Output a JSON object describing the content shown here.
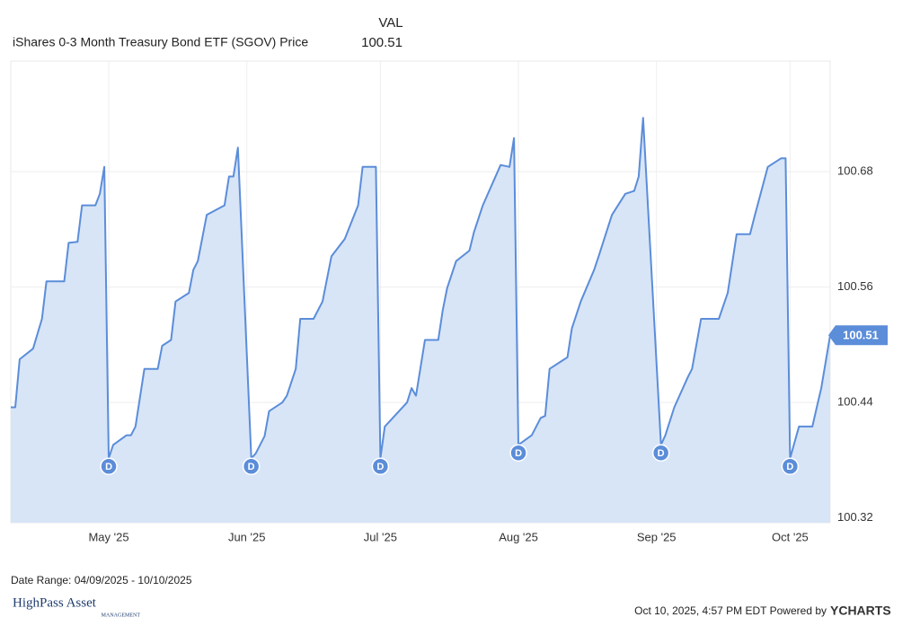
{
  "chart_data": {
    "type": "line",
    "legend_header": "VAL",
    "series": [
      {
        "name": "iShares 0-3 Month Treasury Bond ETF (SGOV) Price",
        "color": "#5b8dd9",
        "x": [
          "2025-04-09",
          "2025-04-10",
          "2025-04-11",
          "2025-04-14",
          "2025-04-16",
          "2025-04-17",
          "2025-04-21",
          "2025-04-22",
          "2025-04-24",
          "2025-04-25",
          "2025-04-28",
          "2025-04-29",
          "2025-04-30",
          "2025-05-01",
          "2025-05-02",
          "2025-05-05",
          "2025-05-06",
          "2025-05-07",
          "2025-05-09",
          "2025-05-12",
          "2025-05-13",
          "2025-05-15",
          "2025-05-16",
          "2025-05-19",
          "2025-05-20",
          "2025-05-21",
          "2025-05-23",
          "2025-05-27",
          "2025-05-28",
          "2025-05-29",
          "2025-05-30",
          "2025-06-02",
          "2025-06-03",
          "2025-06-05",
          "2025-06-06",
          "2025-06-09",
          "2025-06-10",
          "2025-06-12",
          "2025-06-13",
          "2025-06-16",
          "2025-06-18",
          "2025-06-20",
          "2025-06-23",
          "2025-06-26",
          "2025-06-27",
          "2025-06-30",
          "2025-07-01",
          "2025-07-02",
          "2025-07-07",
          "2025-07-08",
          "2025-07-09",
          "2025-07-11",
          "2025-07-14",
          "2025-07-15",
          "2025-07-16",
          "2025-07-18",
          "2025-07-21",
          "2025-07-22",
          "2025-07-24",
          "2025-07-28",
          "2025-07-30",
          "2025-07-31",
          "2025-08-01",
          "2025-08-04",
          "2025-08-06",
          "2025-08-07",
          "2025-08-08",
          "2025-08-11",
          "2025-08-12",
          "2025-08-13",
          "2025-08-15",
          "2025-08-18",
          "2025-08-19",
          "2025-08-22",
          "2025-08-25",
          "2025-08-27",
          "2025-08-28",
          "2025-08-29",
          "2025-09-02",
          "2025-09-03",
          "2025-09-05",
          "2025-09-08",
          "2025-09-09",
          "2025-09-11",
          "2025-09-15",
          "2025-09-17",
          "2025-09-19",
          "2025-09-22",
          "2025-09-23",
          "2025-09-26",
          "2025-09-29",
          "2025-09-30",
          "2025-10-01",
          "2025-10-03",
          "2025-10-06",
          "2025-10-07",
          "2025-10-08",
          "2025-10-10"
        ],
        "values": [
          100.435,
          100.435,
          100.485,
          100.496,
          100.527,
          100.566,
          100.566,
          100.606,
          100.607,
          100.645,
          100.645,
          100.657,
          100.685,
          100.382,
          100.396,
          100.406,
          100.406,
          100.415,
          100.475,
          100.475,
          100.499,
          100.505,
          100.545,
          100.554,
          100.578,
          100.587,
          100.635,
          100.645,
          100.675,
          100.675,
          100.705,
          100.382,
          100.387,
          100.405,
          100.431,
          100.44,
          100.447,
          100.475,
          100.527,
          100.527,
          100.545,
          100.592,
          100.61,
          100.645,
          100.685,
          100.685,
          100.382,
          100.415,
          100.44,
          100.455,
          100.447,
          100.505,
          100.505,
          100.536,
          100.559,
          100.587,
          100.598,
          100.617,
          100.645,
          100.687,
          100.685,
          100.715,
          100.396,
          100.406,
          100.424,
          100.426,
          100.475,
          100.484,
          100.487,
          100.517,
          100.545,
          100.578,
          100.592,
          100.635,
          100.657,
          100.66,
          100.675,
          100.736,
          100.396,
          100.406,
          100.435,
          100.466,
          100.475,
          100.527,
          100.527,
          100.554,
          100.615,
          100.615,
          100.633,
          100.685,
          100.694,
          100.694,
          100.382,
          100.415,
          100.415,
          100.435,
          100.455,
          100.51
        ]
      }
    ],
    "dividends": [
      {
        "x": "2025-05-01",
        "label": "D"
      },
      {
        "x": "2025-06-02",
        "label": "D"
      },
      {
        "x": "2025-07-01",
        "label": "D"
      },
      {
        "x": "2025-08-01",
        "label": "D"
      },
      {
        "x": "2025-09-02",
        "label": "D"
      },
      {
        "x": "2025-10-01",
        "label": "D"
      }
    ],
    "xlim": [
      "2025-04-09",
      "2025-10-10"
    ],
    "xticks": [
      {
        "value": "2025-05-01",
        "label": "May '25"
      },
      {
        "value": "2025-06-01",
        "label": "Jun '25"
      },
      {
        "value": "2025-07-01",
        "label": "Jul '25"
      },
      {
        "value": "2025-08-01",
        "label": "Aug '25"
      },
      {
        "value": "2025-09-01",
        "label": "Sep '25"
      },
      {
        "value": "2025-10-01",
        "label": "Oct '25"
      }
    ],
    "ylim": [
      100.315,
      100.795
    ],
    "yticks": [
      100.32,
      100.44,
      100.56,
      100.68
    ],
    "grid": true
  },
  "footer": {
    "date_range": "Date Range: 04/09/2025 - 10/10/2025",
    "logo": "HighPass Asset",
    "logo_sub": "MANAGEMENT",
    "timestamp": "Oct 10, 2025, 4:57 PM EDT Powered by",
    "brand": "YCHARTS"
  }
}
